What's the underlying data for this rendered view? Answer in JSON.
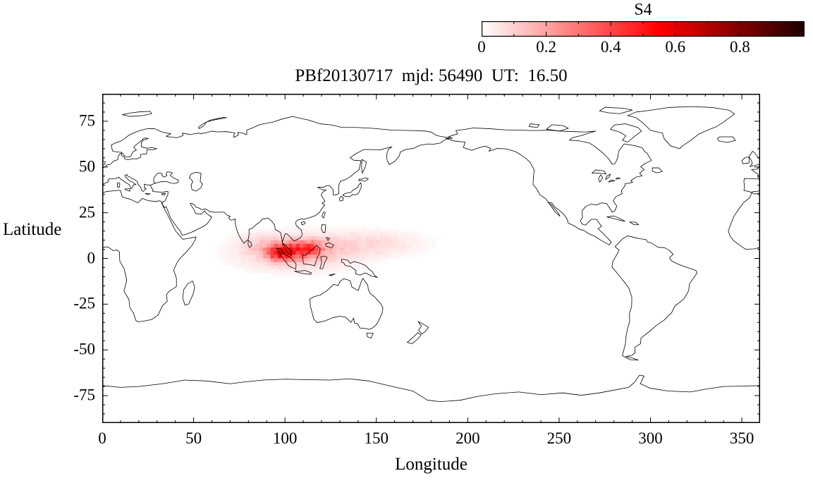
{
  "figure": {
    "title": "PBf20130717  mjd: 56490  UT:  16.50",
    "colorbar": {
      "label": "S4",
      "tick_labels": [
        "0",
        "0.2",
        "0.4",
        "0.6",
        "0.8"
      ]
    },
    "x_axis": {
      "label": "Longitude",
      "tick_labels": [
        "0",
        "50",
        "100",
        "150",
        "200",
        "250",
        "300",
        "350"
      ]
    },
    "y_axis": {
      "label": "Latitude",
      "tick_labels": [
        "75",
        "50",
        "25",
        "0",
        "-25",
        "-50",
        "-75"
      ]
    }
  },
  "chart_data": {
    "type": "heatmap",
    "title": "PBf20130717  mjd: 56490  UT:  16.50",
    "xlabel": "Longitude",
    "ylabel": "Latitude",
    "xlim": [
      0,
      360
    ],
    "ylim": [
      -90,
      90
    ],
    "x_ticks": [
      0,
      50,
      100,
      150,
      200,
      250,
      300,
      350
    ],
    "x_minor_step": 10,
    "y_ticks": [
      75,
      50,
      25,
      0,
      -25,
      -50,
      -75
    ],
    "y_minor_step": 5,
    "grid": false,
    "basemap": "simplified world coastlines, equirectangular projection, longitude 0-360",
    "cell_size_deg": 2,
    "colorbar": {
      "label": "S4",
      "min": 0,
      "max": 1,
      "labeled_ticks": [
        0,
        0.2,
        0.4,
        0.6,
        0.8
      ],
      "minor_tick_step": 0.1,
      "colormap_stops": [
        [
          0,
          "#ffffff"
        ],
        [
          0.55,
          "#ff0000"
        ],
        [
          1,
          "#1e0000"
        ]
      ]
    },
    "hotspots": [
      {
        "lon": 96,
        "lat": 3,
        "sigma_lon": 4.5,
        "sigma_lat": 3,
        "peak_s4": 0.34
      },
      {
        "lon": 103,
        "lat": 4,
        "sigma_lon": 5,
        "sigma_lat": 3.2,
        "peak_s4": 0.2
      },
      {
        "lon": 112,
        "lat": 5,
        "sigma_lon": 5.5,
        "sigma_lat": 3,
        "peak_s4": 0.3
      },
      {
        "lon": 106,
        "lat": 3,
        "sigma_lon": 20,
        "sigma_lat": 6,
        "peak_s4": 0.14
      },
      {
        "lon": 86,
        "lat": 8,
        "sigma_lon": 8,
        "sigma_lat": 4,
        "peak_s4": 0.06
      },
      {
        "lon": 135,
        "lat": 8,
        "sigma_lon": 18,
        "sigma_lat": 5,
        "peak_s4": 0.06
      },
      {
        "lon": 160,
        "lat": 8,
        "sigma_lon": 14,
        "sigma_lat": 4.5,
        "peak_s4": 0.035
      }
    ]
  }
}
